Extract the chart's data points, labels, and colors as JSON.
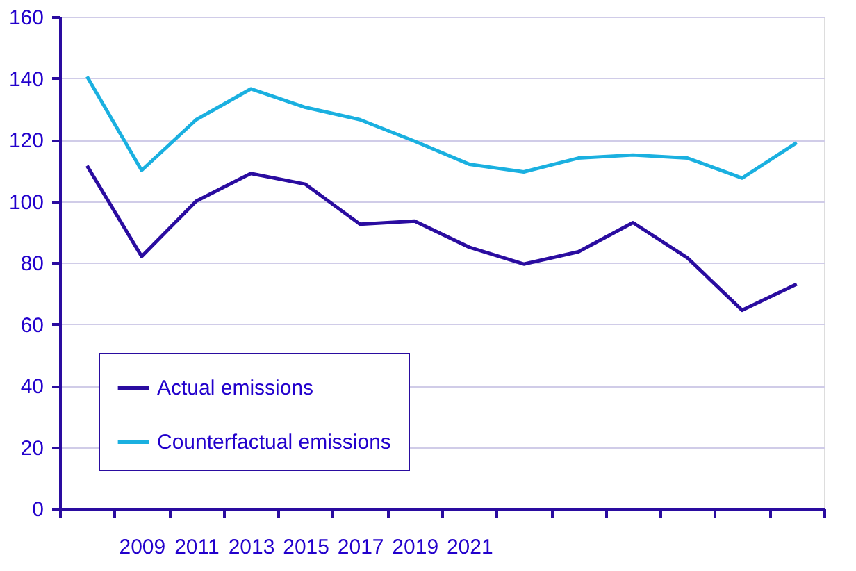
{
  "chart_data": {
    "type": "line",
    "categories": [
      null,
      "2009",
      "2011",
      "2013",
      "2015",
      "2017",
      "2019",
      "2021",
      null,
      null,
      null,
      null,
      null,
      null
    ],
    "series": [
      {
        "name": "Actual emissions",
        "color": "#2a0ca0",
        "values": [
          111.5,
          82,
          100,
          109,
          105.5,
          92.5,
          93.5,
          85,
          79.5,
          83.5,
          93,
          81.5,
          64.5,
          73
        ]
      },
      {
        "name": "Counterfactual emissions",
        "color": "#1ab0e0",
        "values": [
          140.5,
          110,
          126.5,
          136.5,
          130.5,
          126.5,
          119.5,
          112,
          109.5,
          114,
          115,
          114,
          107.5,
          119
        ]
      }
    ],
    "ylim": [
      0,
      160
    ],
    "yticks": [
      0,
      20,
      40,
      60,
      80,
      100,
      120,
      140,
      160
    ],
    "grid": "y",
    "legend": "bottom left",
    "marker": "none",
    "line_style": "solid"
  }
}
